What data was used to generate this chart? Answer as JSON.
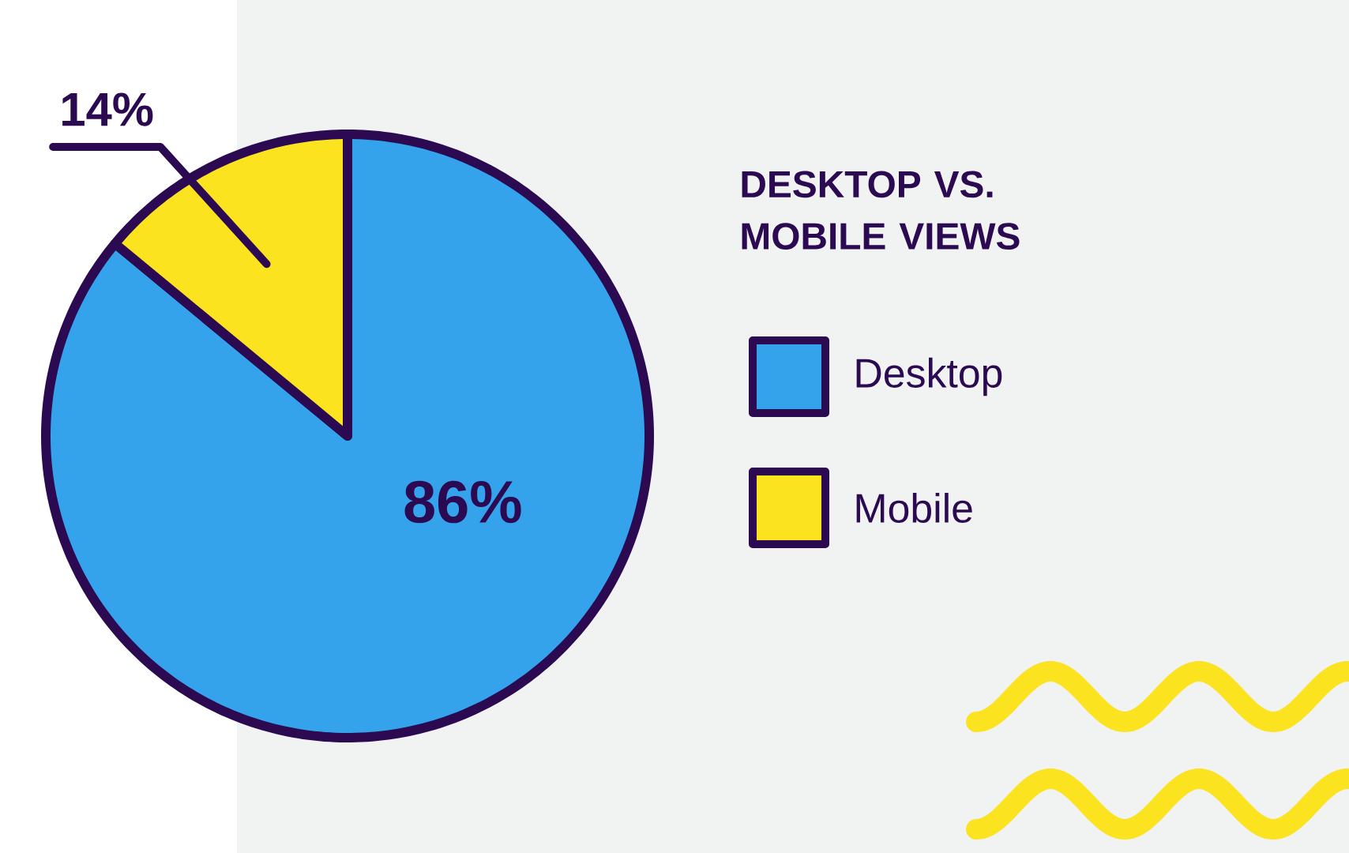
{
  "chart_data": {
    "type": "pie",
    "title": "DESKTOP VS. MOBILE VIEWS",
    "categories": [
      "Desktop",
      "Mobile"
    ],
    "values": [
      86,
      14
    ],
    "colors": [
      "#35a2ec",
      "#fbe31f"
    ],
    "value_labels": [
      "86%",
      "14%"
    ],
    "legend": "right"
  }
}
